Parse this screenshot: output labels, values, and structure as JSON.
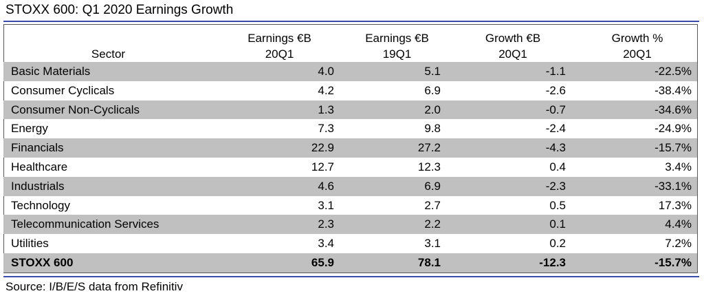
{
  "title": "STOXX 600: Q1 2020 Earnings Growth",
  "source": "Source: I/B/E/S data from Refinitiv",
  "colors": {
    "rule": "#3a4aa8",
    "row_shade": "#c0c0c0"
  },
  "chart_data": {
    "type": "table",
    "title": "STOXX 600: Q1 2020 Earnings Growth",
    "columns": [
      "Sector",
      "Earnings €B\n20Q1",
      "Earnings €B\n19Q1",
      "Growth €B\n20Q1",
      "Growth %\n20Q1"
    ],
    "rows": [
      [
        "Basic Materials",
        "4.0",
        "5.1",
        "-1.1",
        "-22.5%"
      ],
      [
        "Consumer Cyclicals",
        "4.2",
        "6.9",
        "-2.6",
        "-38.4%"
      ],
      [
        "Consumer Non-Cyclicals",
        "1.3",
        "2.0",
        "-0.7",
        "-34.6%"
      ],
      [
        "Energy",
        "7.3",
        "9.8",
        "-2.4",
        "-24.9%"
      ],
      [
        "Financials",
        "22.9",
        "27.2",
        "-4.3",
        "-15.7%"
      ],
      [
        "Healthcare",
        "12.7",
        "12.3",
        "0.4",
        "3.4%"
      ],
      [
        "Industrials",
        "4.6",
        "6.9",
        "-2.3",
        "-33.1%"
      ],
      [
        "Technology",
        "3.1",
        "2.7",
        "0.5",
        "17.3%"
      ],
      [
        "Telecommunication Services",
        "2.3",
        "2.2",
        "0.1",
        "4.4%"
      ],
      [
        "Utilities",
        "3.4",
        "3.1",
        "0.2",
        "7.2%"
      ]
    ],
    "total": [
      "STOXX 600",
      "65.9",
      "78.1",
      "-12.3",
      "-15.7%"
    ]
  }
}
